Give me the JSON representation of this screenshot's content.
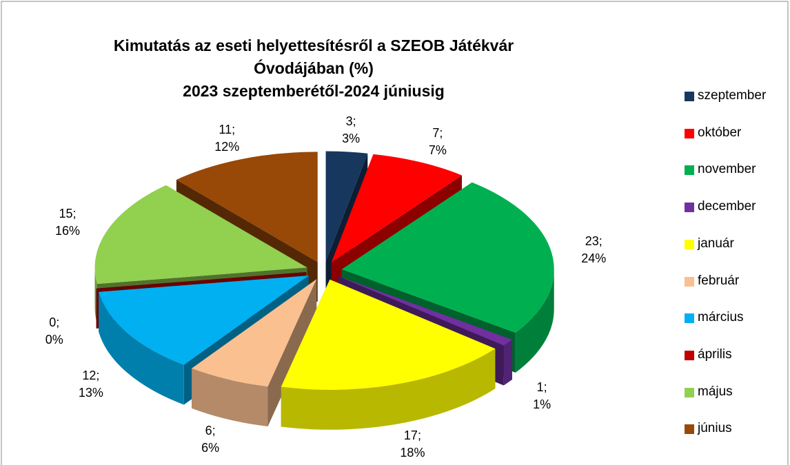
{
  "chart_data": {
    "type": "pie",
    "title": "Kimutatás az eseti helyettesítésről a SZEOB Játékvár Óvodájában (%)",
    "subtitle": "2023 szeptemberétől-2024 júniusig",
    "categories": [
      "szeptember",
      "október",
      "november",
      "december",
      "január",
      "február",
      "március",
      "április",
      "május",
      "június"
    ],
    "values": [
      3,
      7,
      23,
      1,
      17,
      6,
      12,
      0,
      15,
      11
    ],
    "value_labels": [
      "3;\n3%",
      "7;\n7%",
      "23;\n24%",
      "1;\n1%",
      "17;\n18%",
      "6;\n6%",
      "12;\n13%",
      "0;\n0%",
      "15;\n16%",
      "11;\n12%"
    ],
    "colors": [
      "#17375e",
      "#ff0000",
      "#00b050",
      "#7030a0",
      "#ffff00",
      "#fac090",
      "#00b0f0",
      "#c00000",
      "#92d050",
      "#984807"
    ],
    "legend": "right"
  }
}
